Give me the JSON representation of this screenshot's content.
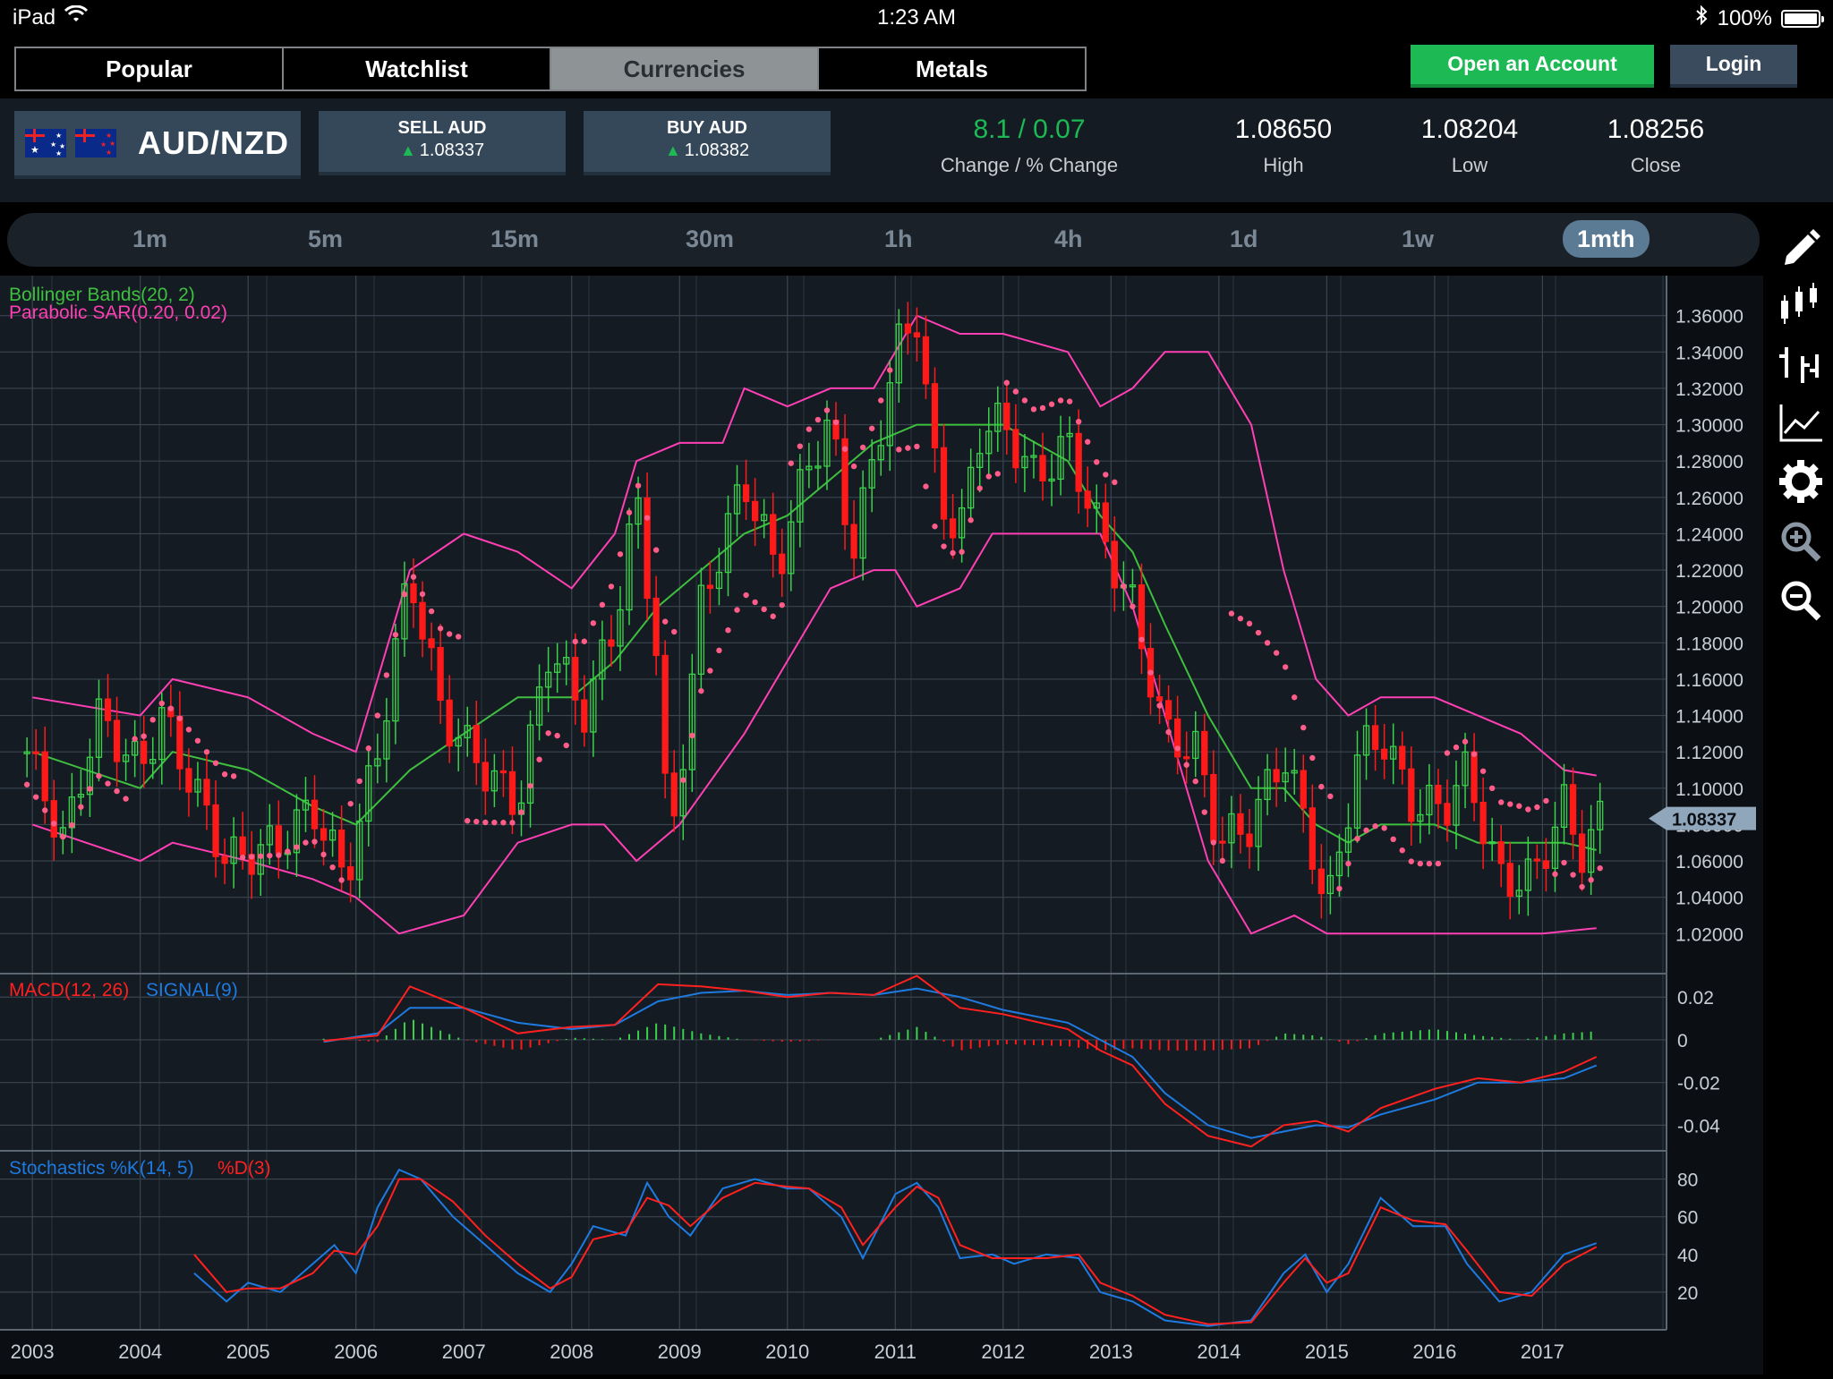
{
  "status": {
    "device": "iPad",
    "time": "1:23 AM",
    "battery": "100%"
  },
  "tabs": [
    "Popular",
    "Watchlist",
    "Currencies",
    "Metals"
  ],
  "active_tab": "Currencies",
  "buttons": {
    "open_account": "Open an Account",
    "login": "Login"
  },
  "instrument": {
    "pair": "AUD/NZD",
    "sell_label": "SELL AUD",
    "sell_price": "1.08337",
    "buy_label": "BUY AUD",
    "buy_price": "1.08382",
    "change": "8.1 / 0.07",
    "change_label": "Change / % Change",
    "high": "1.08650",
    "high_label": "High",
    "low": "1.08204",
    "low_label": "Low",
    "close": "1.08256",
    "close_label": "Close"
  },
  "timeframes": [
    "1m",
    "5m",
    "15m",
    "30m",
    "1h",
    "4h",
    "1d",
    "1w",
    "1mth"
  ],
  "active_timeframe": "1mth",
  "sidebar_tools": [
    "pencil-icon",
    "candlestick-icon",
    "ohlc-bars-icon",
    "line-chart-icon",
    "gear-icon",
    "zoom-in-icon",
    "zoom-out-icon"
  ],
  "colors": {
    "bull": "#3bd14a",
    "bear": "#ff1a1a",
    "bollinger_mid": "#3fbf3f",
    "bollinger_band": "#ff3fb4",
    "sar": "#ff5c8a",
    "macd": "#ff2020",
    "signal": "#1f7ae0",
    "stoch_k": "#1f7ae0",
    "stoch_d": "#ff2020",
    "positive": "#1db954"
  },
  "chart_data": {
    "type": "candlestick",
    "instrument": "AUD/NZD",
    "interval": "1mth",
    "x_labels": [
      "2003",
      "2004",
      "2005",
      "2006",
      "2007",
      "2008",
      "2009",
      "2010",
      "2011",
      "2012",
      "2013",
      "2014",
      "2015",
      "2016",
      "2017"
    ],
    "price_axis": {
      "ticks": [
        "1.36000",
        "1.34000",
        "1.32000",
        "1.30000",
        "1.28000",
        "1.26000",
        "1.24000",
        "1.22000",
        "1.20000",
        "1.18000",
        "1.16000",
        "1.14000",
        "1.12000",
        "1.10000",
        "1.08000",
        "1.06000",
        "1.04000",
        "1.02000"
      ],
      "ylim": [
        0.998,
        1.382
      ]
    },
    "current_price": "1.08337",
    "indicators": {
      "bollinger": "Bollinger Bands(20, 2)",
      "sar": "Parabolic SAR(0.20, 0.02)",
      "macd": "MACD(12, 26)",
      "signal": "SIGNAL(9)",
      "stoch_k": "Stochastics %K(14, 5)",
      "stoch_d": "%D(3)"
    },
    "macd_axis": {
      "ticks": [
        "0.02",
        "0",
        "-0.02",
        "-0.04"
      ],
      "ylim": [
        -0.052,
        0.031
      ]
    },
    "stoch_axis": {
      "ticks": [
        "80",
        "60",
        "40",
        "20"
      ],
      "ylim": [
        0,
        95
      ]
    },
    "close_keypoints": [
      [
        2002.95,
        1.12
      ],
      [
        2003.3,
        1.07
      ],
      [
        2003.6,
        1.14
      ],
      [
        2004.0,
        1.11
      ],
      [
        2004.2,
        1.14
      ],
      [
        2004.5,
        1.1
      ],
      [
        2004.8,
        1.06
      ],
      [
        2005.3,
        1.07
      ],
      [
        2005.6,
        1.09
      ],
      [
        2005.9,
        1.05
      ],
      [
        2006.2,
        1.12
      ],
      [
        2006.5,
        1.22
      ],
      [
        2006.8,
        1.14
      ],
      [
        2007.2,
        1.11
      ],
      [
        2007.5,
        1.09
      ],
      [
        2007.8,
        1.18
      ],
      [
        2008.1,
        1.14
      ],
      [
        2008.4,
        1.19
      ],
      [
        2008.6,
        1.26
      ],
      [
        2008.8,
        1.17
      ],
      [
        2008.9,
        1.06
      ],
      [
        2009.2,
        1.2
      ],
      [
        2009.6,
        1.27
      ],
      [
        2009.9,
        1.22
      ],
      [
        2010.2,
        1.28
      ],
      [
        2010.4,
        1.3
      ],
      [
        2010.6,
        1.23
      ],
      [
        2010.8,
        1.28
      ],
      [
        2011.0,
        1.34
      ],
      [
        2011.2,
        1.36
      ],
      [
        2011.4,
        1.26
      ],
      [
        2011.6,
        1.24
      ],
      [
        2011.8,
        1.3
      ],
      [
        2012.0,
        1.3
      ],
      [
        2012.3,
        1.27
      ],
      [
        2012.6,
        1.29
      ],
      [
        2012.9,
        1.24
      ],
      [
        2013.2,
        1.2
      ],
      [
        2013.5,
        1.13
      ],
      [
        2013.8,
        1.12
      ],
      [
        2014.0,
        1.07
      ],
      [
        2014.3,
        1.08
      ],
      [
        2014.6,
        1.12
      ],
      [
        2014.9,
        1.06
      ],
      [
        2015.0,
        1.03
      ],
      [
        2015.3,
        1.12
      ],
      [
        2015.5,
        1.13
      ],
      [
        2015.8,
        1.09
      ],
      [
        2016.1,
        1.09
      ],
      [
        2016.3,
        1.11
      ],
      [
        2016.6,
        1.05
      ],
      [
        2016.9,
        1.05
      ],
      [
        2017.2,
        1.09
      ],
      [
        2017.4,
        1.06
      ],
      [
        2017.5,
        1.083
      ]
    ],
    "bollinger_upper": [
      [
        2003.0,
        1.15
      ],
      [
        2004.0,
        1.14
      ],
      [
        2004.3,
        1.16
      ],
      [
        2005.0,
        1.15
      ],
      [
        2005.6,
        1.13
      ],
      [
        2006.0,
        1.12
      ],
      [
        2006.5,
        1.22
      ],
      [
        2007.0,
        1.24
      ],
      [
        2007.5,
        1.23
      ],
      [
        2008.0,
        1.21
      ],
      [
        2008.4,
        1.24
      ],
      [
        2008.6,
        1.28
      ],
      [
        2009.0,
        1.29
      ],
      [
        2009.4,
        1.29
      ],
      [
        2009.6,
        1.32
      ],
      [
        2010.0,
        1.31
      ],
      [
        2010.4,
        1.32
      ],
      [
        2010.8,
        1.32
      ],
      [
        2011.2,
        1.36
      ],
      [
        2011.6,
        1.35
      ],
      [
        2012.0,
        1.35
      ],
      [
        2012.6,
        1.34
      ],
      [
        2012.9,
        1.31
      ],
      [
        2013.2,
        1.32
      ],
      [
        2013.5,
        1.34
      ],
      [
        2013.9,
        1.34
      ],
      [
        2014.3,
        1.3
      ],
      [
        2014.6,
        1.22
      ],
      [
        2014.9,
        1.16
      ],
      [
        2015.2,
        1.14
      ],
      [
        2015.5,
        1.15
      ],
      [
        2016.0,
        1.15
      ],
      [
        2016.4,
        1.14
      ],
      [
        2016.8,
        1.13
      ],
      [
        2017.2,
        1.11
      ],
      [
        2017.5,
        1.107
      ]
    ],
    "bollinger_middle": [
      [
        2003.0,
        1.12
      ],
      [
        2004.0,
        1.1
      ],
      [
        2004.3,
        1.12
      ],
      [
        2005.0,
        1.11
      ],
      [
        2005.6,
        1.09
      ],
      [
        2006.0,
        1.08
      ],
      [
        2006.5,
        1.11
      ],
      [
        2007.0,
        1.13
      ],
      [
        2007.5,
        1.15
      ],
      [
        2008.0,
        1.15
      ],
      [
        2008.4,
        1.17
      ],
      [
        2008.8,
        1.2
      ],
      [
        2009.2,
        1.22
      ],
      [
        2009.6,
        1.24
      ],
      [
        2010.0,
        1.25
      ],
      [
        2010.4,
        1.27
      ],
      [
        2010.8,
        1.29
      ],
      [
        2011.2,
        1.3
      ],
      [
        2011.6,
        1.3
      ],
      [
        2012.0,
        1.3
      ],
      [
        2012.6,
        1.28
      ],
      [
        2012.9,
        1.25
      ],
      [
        2013.2,
        1.23
      ],
      [
        2013.5,
        1.19
      ],
      [
        2013.9,
        1.14
      ],
      [
        2014.3,
        1.1
      ],
      [
        2014.6,
        1.1
      ],
      [
        2014.9,
        1.08
      ],
      [
        2015.2,
        1.07
      ],
      [
        2015.5,
        1.08
      ],
      [
        2016.0,
        1.08
      ],
      [
        2016.4,
        1.07
      ],
      [
        2016.8,
        1.07
      ],
      [
        2017.2,
        1.07
      ],
      [
        2017.5,
        1.066
      ]
    ],
    "bollinger_lower": [
      [
        2003.0,
        1.08
      ],
      [
        2004.0,
        1.06
      ],
      [
        2004.3,
        1.07
      ],
      [
        2005.0,
        1.06
      ],
      [
        2005.6,
        1.05
      ],
      [
        2006.0,
        1.04
      ],
      [
        2006.4,
        1.02
      ],
      [
        2007.0,
        1.03
      ],
      [
        2007.5,
        1.07
      ],
      [
        2008.0,
        1.08
      ],
      [
        2008.3,
        1.08
      ],
      [
        2008.6,
        1.06
      ],
      [
        2009.0,
        1.08
      ],
      [
        2009.6,
        1.13
      ],
      [
        2010.0,
        1.17
      ],
      [
        2010.4,
        1.21
      ],
      [
        2010.8,
        1.22
      ],
      [
        2011.0,
        1.22
      ],
      [
        2011.2,
        1.2
      ],
      [
        2011.6,
        1.21
      ],
      [
        2011.9,
        1.24
      ],
      [
        2012.3,
        1.24
      ],
      [
        2012.9,
        1.24
      ],
      [
        2013.2,
        1.2
      ],
      [
        2013.5,
        1.14
      ],
      [
        2013.9,
        1.06
      ],
      [
        2014.3,
        1.02
      ],
      [
        2014.7,
        1.03
      ],
      [
        2015.0,
        1.02
      ],
      [
        2015.5,
        1.02
      ],
      [
        2016.0,
        1.02
      ],
      [
        2016.5,
        1.02
      ],
      [
        2017.0,
        1.02
      ],
      [
        2017.5,
        1.023
      ]
    ],
    "macd_line": [
      [
        2005.7,
        -0.0005
      ],
      [
        2006.2,
        0.002
      ],
      [
        2006.5,
        0.025
      ],
      [
        2007.0,
        0.015
      ],
      [
        2007.5,
        0.003
      ],
      [
        2008.0,
        0.006
      ],
      [
        2008.4,
        0.007
      ],
      [
        2008.8,
        0.026
      ],
      [
        2009.2,
        0.025
      ],
      [
        2009.6,
        0.023
      ],
      [
        2010.0,
        0.02
      ],
      [
        2010.4,
        0.022
      ],
      [
        2010.8,
        0.021
      ],
      [
        2011.2,
        0.03
      ],
      [
        2011.6,
        0.015
      ],
      [
        2012.0,
        0.012
      ],
      [
        2012.6,
        0.005
      ],
      [
        2012.9,
        -0.005
      ],
      [
        2013.2,
        -0.012
      ],
      [
        2013.5,
        -0.03
      ],
      [
        2013.9,
        -0.045
      ],
      [
        2014.3,
        -0.05
      ],
      [
        2014.6,
        -0.04
      ],
      [
        2014.9,
        -0.038
      ],
      [
        2015.2,
        -0.043
      ],
      [
        2015.5,
        -0.032
      ],
      [
        2016.0,
        -0.023
      ],
      [
        2016.4,
        -0.018
      ],
      [
        2016.8,
        -0.02
      ],
      [
        2017.2,
        -0.015
      ],
      [
        2017.5,
        -0.008
      ]
    ],
    "signal_line": [
      [
        2005.7,
        -0.001
      ],
      [
        2006.2,
        0.003
      ],
      [
        2006.5,
        0.015
      ],
      [
        2007.0,
        0.015
      ],
      [
        2007.5,
        0.008
      ],
      [
        2008.0,
        0.005
      ],
      [
        2008.4,
        0.007
      ],
      [
        2008.8,
        0.018
      ],
      [
        2009.2,
        0.022
      ],
      [
        2009.6,
        0.023
      ],
      [
        2010.0,
        0.021
      ],
      [
        2010.4,
        0.022
      ],
      [
        2010.8,
        0.021
      ],
      [
        2011.2,
        0.024
      ],
      [
        2011.6,
        0.02
      ],
      [
        2012.0,
        0.014
      ],
      [
        2012.6,
        0.008
      ],
      [
        2012.9,
        0.0
      ],
      [
        2013.2,
        -0.008
      ],
      [
        2013.5,
        -0.025
      ],
      [
        2013.9,
        -0.04
      ],
      [
        2014.3,
        -0.046
      ],
      [
        2014.6,
        -0.043
      ],
      [
        2014.9,
        -0.04
      ],
      [
        2015.2,
        -0.041
      ],
      [
        2015.5,
        -0.035
      ],
      [
        2016.0,
        -0.028
      ],
      [
        2016.4,
        -0.02
      ],
      [
        2016.8,
        -0.02
      ],
      [
        2017.2,
        -0.018
      ],
      [
        2017.5,
        -0.012
      ]
    ],
    "stoch_k": [
      [
        2004.5,
        30
      ],
      [
        2004.8,
        15
      ],
      [
        2005.0,
        25
      ],
      [
        2005.3,
        20
      ],
      [
        2005.6,
        35
      ],
      [
        2005.8,
        45
      ],
      [
        2006.0,
        30
      ],
      [
        2006.2,
        65
      ],
      [
        2006.4,
        85
      ],
      [
        2006.6,
        80
      ],
      [
        2006.9,
        60
      ],
      [
        2007.2,
        45
      ],
      [
        2007.5,
        30
      ],
      [
        2007.8,
        20
      ],
      [
        2008.0,
        35
      ],
      [
        2008.2,
        55
      ],
      [
        2008.5,
        50
      ],
      [
        2008.7,
        78
      ],
      [
        2008.9,
        60
      ],
      [
        2009.1,
        50
      ],
      [
        2009.4,
        75
      ],
      [
        2009.7,
        80
      ],
      [
        2010.0,
        75
      ],
      [
        2010.2,
        75
      ],
      [
        2010.5,
        60
      ],
      [
        2010.7,
        38
      ],
      [
        2011.0,
        72
      ],
      [
        2011.2,
        78
      ],
      [
        2011.4,
        65
      ],
      [
        2011.6,
        38
      ],
      [
        2011.9,
        40
      ],
      [
        2012.1,
        35
      ],
      [
        2012.4,
        40
      ],
      [
        2012.7,
        38
      ],
      [
        2012.9,
        20
      ],
      [
        2013.2,
        15
      ],
      [
        2013.5,
        5
      ],
      [
        2013.9,
        2
      ],
      [
        2014.3,
        5
      ],
      [
        2014.6,
        30
      ],
      [
        2014.8,
        40
      ],
      [
        2015.0,
        20
      ],
      [
        2015.2,
        35
      ],
      [
        2015.5,
        70
      ],
      [
        2015.8,
        55
      ],
      [
        2016.1,
        55
      ],
      [
        2016.3,
        35
      ],
      [
        2016.6,
        15
      ],
      [
        2016.9,
        20
      ],
      [
        2017.2,
        40
      ],
      [
        2017.5,
        46
      ]
    ],
    "stoch_d": [
      [
        2004.5,
        40
      ],
      [
        2004.8,
        20
      ],
      [
        2005.0,
        22
      ],
      [
        2005.3,
        22
      ],
      [
        2005.6,
        30
      ],
      [
        2005.8,
        42
      ],
      [
        2006.0,
        40
      ],
      [
        2006.2,
        55
      ],
      [
        2006.4,
        80
      ],
      [
        2006.6,
        80
      ],
      [
        2006.9,
        68
      ],
      [
        2007.2,
        50
      ],
      [
        2007.5,
        35
      ],
      [
        2007.8,
        22
      ],
      [
        2008.0,
        28
      ],
      [
        2008.2,
        48
      ],
      [
        2008.5,
        52
      ],
      [
        2008.7,
        70
      ],
      [
        2008.9,
        66
      ],
      [
        2009.1,
        55
      ],
      [
        2009.4,
        70
      ],
      [
        2009.7,
        78
      ],
      [
        2010.0,
        76
      ],
      [
        2010.2,
        75
      ],
      [
        2010.5,
        65
      ],
      [
        2010.7,
        45
      ],
      [
        2011.0,
        65
      ],
      [
        2011.2,
        76
      ],
      [
        2011.4,
        70
      ],
      [
        2011.6,
        45
      ],
      [
        2011.9,
        38
      ],
      [
        2012.1,
        38
      ],
      [
        2012.4,
        38
      ],
      [
        2012.7,
        40
      ],
      [
        2012.9,
        25
      ],
      [
        2013.2,
        18
      ],
      [
        2013.5,
        8
      ],
      [
        2013.9,
        3
      ],
      [
        2014.3,
        4
      ],
      [
        2014.6,
        25
      ],
      [
        2014.8,
        38
      ],
      [
        2015.0,
        25
      ],
      [
        2015.2,
        30
      ],
      [
        2015.5,
        65
      ],
      [
        2015.8,
        58
      ],
      [
        2016.1,
        56
      ],
      [
        2016.3,
        42
      ],
      [
        2016.6,
        20
      ],
      [
        2016.9,
        18
      ],
      [
        2017.2,
        35
      ],
      [
        2017.5,
        44
      ]
    ]
  }
}
